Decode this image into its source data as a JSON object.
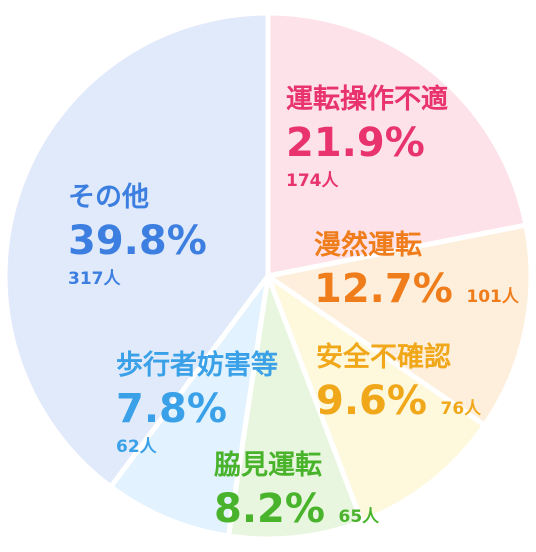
{
  "chart_data": {
    "type": "pie",
    "slices": [
      {
        "label": "運転操作不適",
        "percent_label": "21.9%",
        "count_label": "174人",
        "value": 21.9,
        "count": 174,
        "fill": "#fde2ea",
        "text_color": "#e8336e"
      },
      {
        "label": "漫然運転",
        "percent_label": "12.7%",
        "count_label": "101人",
        "value": 12.7,
        "count": 101,
        "fill": "#feefdc",
        "text_color": "#f07d1c"
      },
      {
        "label": "安全不確認",
        "percent_label": "9.6%",
        "count_label": "76人",
        "value": 9.6,
        "count": 76,
        "fill": "#fef8dc",
        "text_color": "#f0a81a"
      },
      {
        "label": "脇見運転",
        "percent_label": "8.2%",
        "count_label": "65人",
        "value": 8.2,
        "count": 65,
        "fill": "#e9f6df",
        "text_color": "#49b32c"
      },
      {
        "label": "歩行者妨害等",
        "percent_label": "7.8%",
        "count_label": "62人",
        "value": 7.8,
        "count": 62,
        "fill": "#e2f2fe",
        "text_color": "#3aa1e8"
      },
      {
        "label": "その他",
        "percent_label": "39.8%",
        "count_label": "317人",
        "value": 39.8,
        "count": 317,
        "fill": "#e1eafa",
        "text_color": "#3d7fe0"
      }
    ],
    "start_angle": "12 o'clock",
    "direction": "clockwise"
  }
}
